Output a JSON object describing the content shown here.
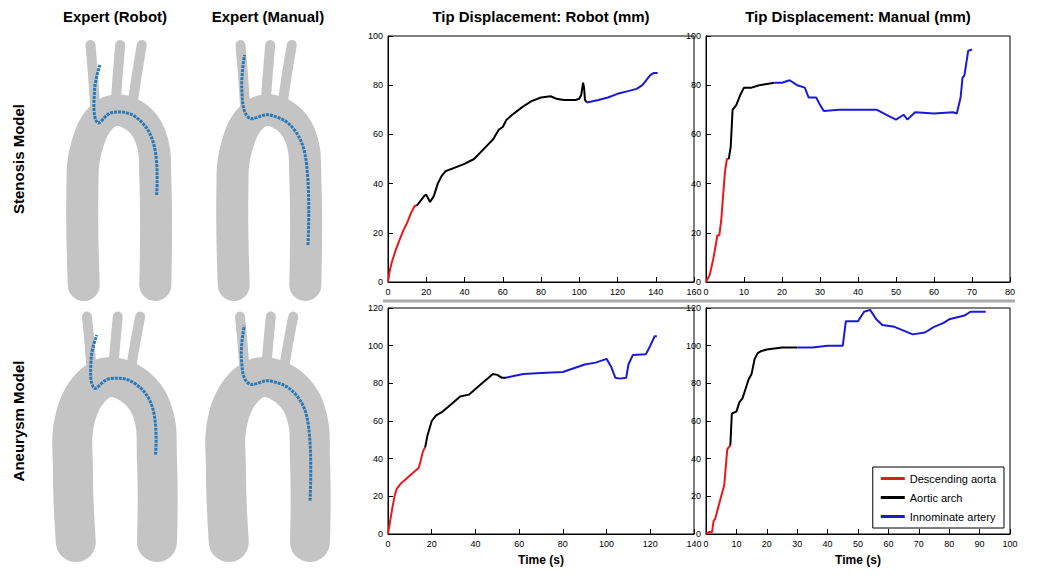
{
  "column_titles": [
    "Expert (Robot)",
    "Expert (Manual)",
    "Tip Displacement: Robot (mm)",
    "Tip Displacement: Manual (mm)"
  ],
  "row_titles": [
    "Stenosis Model",
    "Aneurysm Model"
  ],
  "chart_data": [
    {
      "type": "line",
      "xlim": [
        0,
        160
      ],
      "xticks": [
        0,
        20,
        40,
        60,
        80,
        100,
        120,
        140,
        160
      ],
      "ylim": [
        0,
        100
      ],
      "yticks": [
        0,
        20,
        40,
        60,
        80,
        100
      ],
      "grid": false,
      "series": [
        {
          "name": "Descending aorta",
          "color": "#e8191c",
          "x": [
            0,
            1,
            2,
            4,
            6,
            8,
            10,
            12,
            14,
            15
          ],
          "values": [
            0,
            5,
            8,
            13,
            17,
            21,
            24,
            28,
            31,
            31
          ]
        },
        {
          "name": "Aortic arch",
          "color": "#000000",
          "x": [
            15,
            17,
            19,
            20,
            21,
            22,
            24,
            26,
            28,
            30,
            35,
            40,
            45,
            50,
            55,
            58,
            60,
            62,
            65,
            70,
            75,
            80,
            85,
            88,
            92,
            95,
            98,
            100,
            101,
            102,
            102.5,
            103,
            104
          ],
          "values": [
            31,
            33,
            35,
            35.5,
            34,
            32.5,
            35,
            40,
            43,
            45,
            46.5,
            48,
            50,
            54,
            58,
            62,
            63,
            66,
            68,
            71,
            73.5,
            75,
            75.5,
            74.5,
            74,
            74,
            74,
            74.5,
            76,
            81,
            79,
            74,
            73
          ]
        },
        {
          "name": "Innominate artery",
          "color": "#1a1ad6",
          "x": [
            104,
            110,
            115,
            120,
            125,
            130,
            133,
            135,
            137,
            139,
            141
          ],
          "values": [
            73,
            74,
            75,
            76.5,
            77.5,
            78.5,
            80,
            82,
            84,
            85,
            85
          ]
        }
      ]
    },
    {
      "type": "line",
      "xlim": [
        0,
        80
      ],
      "xticks": [
        0,
        10,
        20,
        30,
        40,
        50,
        60,
        70,
        80
      ],
      "ylim": [
        0,
        100
      ],
      "yticks": [
        0,
        20,
        40,
        60,
        80,
        100
      ],
      "grid": false,
      "series": [
        {
          "name": "Descending aorta",
          "color": "#e8191c",
          "x": [
            0,
            1,
            2,
            3,
            3.5,
            4,
            4.5,
            5,
            5.5,
            6
          ],
          "values": [
            0,
            3,
            10,
            19,
            19,
            25,
            35,
            45,
            50,
            50
          ]
        },
        {
          "name": "Aortic arch",
          "color": "#000000",
          "x": [
            6,
            6.5,
            7,
            8,
            9,
            10,
            12,
            14,
            16,
            18
          ],
          "values": [
            50,
            55,
            70,
            72,
            76,
            79,
            79,
            80,
            80.5,
            81
          ]
        },
        {
          "name": "Innominate artery",
          "color": "#1a1ad6",
          "x": [
            18,
            20,
            22,
            24,
            26,
            27,
            29,
            30,
            31,
            35,
            40,
            45,
            48,
            50,
            52,
            53,
            55,
            60,
            65,
            66,
            67,
            67.5,
            68,
            68.5,
            69,
            70
          ],
          "values": [
            81,
            81,
            82,
            80,
            79,
            75,
            75,
            72,
            69.5,
            70,
            70,
            70,
            67.5,
            66,
            68,
            66,
            69,
            68.5,
            69,
            68.5,
            75,
            83,
            84,
            89,
            94,
            94.5
          ]
        }
      ]
    },
    {
      "type": "line",
      "x_label": "Time (s)",
      "xlim": [
        0,
        140
      ],
      "xticks": [
        0,
        20,
        40,
        60,
        80,
        100,
        120,
        140
      ],
      "ylim": [
        0,
        120
      ],
      "yticks": [
        0,
        20,
        40,
        60,
        80,
        100,
        120
      ],
      "grid": false,
      "series": [
        {
          "name": "Descending aorta",
          "color": "#e8191c",
          "x": [
            0,
            1,
            2,
            3,
            4,
            6,
            8,
            10,
            12,
            14,
            15,
            16,
            17
          ],
          "values": [
            0,
            7,
            14,
            20,
            24,
            27,
            29,
            31,
            33,
            35,
            39,
            44,
            46
          ]
        },
        {
          "name": "Aortic arch",
          "color": "#000000",
          "x": [
            17,
            18,
            19,
            20,
            22,
            25,
            28,
            30,
            33,
            37,
            40,
            43,
            46,
            48,
            50,
            52,
            54
          ],
          "values": [
            46,
            52,
            56,
            60,
            63,
            65,
            68,
            70,
            73,
            74,
            77,
            80,
            83,
            85,
            84.5,
            83,
            83
          ]
        },
        {
          "name": "Innominate artery",
          "color": "#1a1ad6",
          "x": [
            54,
            58,
            62,
            70,
            80,
            85,
            90,
            95,
            100,
            102,
            104,
            106,
            109,
            110,
            112,
            118,
            120,
            122,
            123
          ],
          "values": [
            83,
            84,
            85,
            85.5,
            86,
            88,
            90,
            91,
            93,
            89,
            83,
            82.5,
            83,
            90,
            95,
            95.5,
            100,
            105,
            105
          ]
        }
      ]
    },
    {
      "type": "line",
      "x_label": "Time (s)",
      "xlim": [
        0,
        100
      ],
      "xticks": [
        0,
        10,
        20,
        30,
        40,
        50,
        60,
        70,
        80,
        90,
        100
      ],
      "ylim": [
        0,
        120
      ],
      "yticks": [
        0,
        20,
        40,
        60,
        80,
        100,
        120
      ],
      "grid": false,
      "legend": "lower right",
      "series": [
        {
          "name": "Descending aorta",
          "color": "#e8191c",
          "x": [
            0,
            1,
            2,
            2.5,
            3,
            4,
            5,
            6,
            7,
            8
          ],
          "values": [
            0,
            1,
            1,
            7,
            8,
            14,
            20,
            26,
            45,
            47
          ]
        },
        {
          "name": "Aortic arch",
          "color": "#000000",
          "x": [
            8,
            8.5,
            10,
            11,
            12,
            13,
            14,
            15,
            16,
            17,
            18,
            20,
            25,
            30
          ],
          "values": [
            47,
            64,
            65,
            70,
            72,
            77,
            82,
            85,
            93,
            96,
            97,
            98,
            99,
            99
          ]
        },
        {
          "name": "Innominate artery",
          "color": "#1a1ad6",
          "x": [
            30,
            35,
            40,
            45,
            46,
            50,
            52,
            54,
            56,
            58,
            62,
            65,
            68,
            72,
            75,
            78,
            80,
            85,
            87,
            90,
            92
          ],
          "values": [
            99,
            99,
            100,
            100,
            113,
            113,
            118,
            119,
            114,
            111,
            110,
            108,
            106,
            107,
            110,
            112,
            114,
            116,
            118,
            118,
            118
          ]
        }
      ]
    }
  ]
}
